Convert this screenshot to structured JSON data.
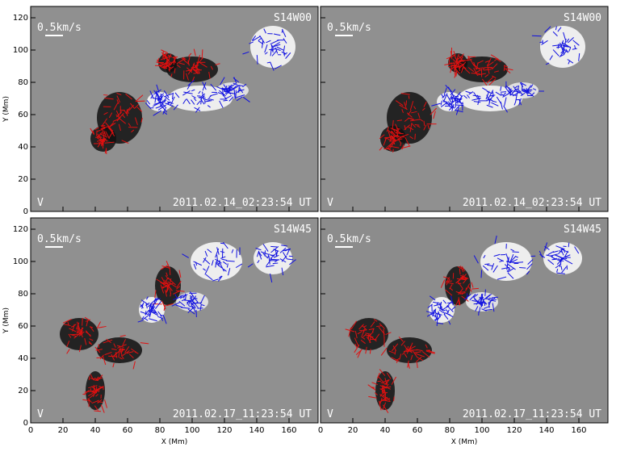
{
  "chart_data": [
    {
      "type": "image",
      "annotation": "S14W00",
      "date": "2011.02.14_02:23:54 UT",
      "scale_label": "0.5km/s",
      "corner_label": "V",
      "ylabel": "Y (Mm)",
      "xlim": [
        0,
        178
      ],
      "ylim": [
        0,
        127
      ],
      "xticks": [
        0,
        20,
        40,
        60,
        80,
        100,
        120,
        140,
        160
      ],
      "yticks": [
        0,
        20,
        40,
        60,
        80,
        100,
        120
      ]
    },
    {
      "type": "image",
      "annotation": "S14W00",
      "date": "2011.02.14_02:23:54 UT",
      "scale_label": "0.5km/s",
      "corner_label": "V",
      "xlim": [
        0,
        178
      ],
      "ylim": [
        0,
        127
      ],
      "xticks": [
        0,
        20,
        40,
        60,
        80,
        100,
        120,
        140,
        160
      ],
      "yticks": [
        0,
        20,
        40,
        60,
        80,
        100,
        120
      ]
    },
    {
      "type": "image",
      "annotation": "S14W45",
      "date": "2011.02.17_11:23:54 UT",
      "scale_label": "0.5km/s",
      "corner_label": "V",
      "ylabel": "Y (Mm)",
      "xlabel": "X (Mm)",
      "xlim": [
        0,
        178
      ],
      "ylim": [
        0,
        127
      ],
      "xticks": [
        0,
        20,
        40,
        60,
        80,
        100,
        120,
        140,
        160
      ],
      "yticks": [
        0,
        20,
        40,
        60,
        80,
        100,
        120
      ]
    },
    {
      "type": "image",
      "annotation": "S14W45",
      "date": "2011.02.17_11:23:54 UT",
      "scale_label": "0.5km/s",
      "corner_label": "V",
      "xlabel": "X (Mm)",
      "xlim": [
        0,
        178
      ],
      "ylim": [
        0,
        127
      ],
      "xticks": [
        0,
        20,
        40,
        60,
        80,
        100,
        120,
        140,
        160
      ],
      "yticks": [
        0,
        20,
        40,
        60,
        80,
        100,
        120
      ]
    }
  ]
}
